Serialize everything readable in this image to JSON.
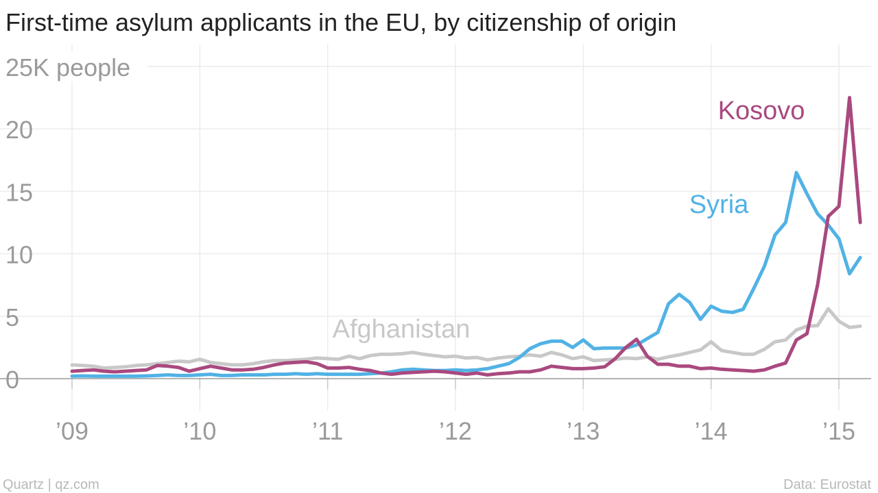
{
  "title": "First-time asylum applicants in the EU, by citizenship of origin",
  "footer": {
    "source_left": "Quartz | qz.com",
    "source_right": "Data: Eurostat"
  },
  "chart_data": {
    "type": "line",
    "title": "First-time asylum applicants in the EU, by citizenship of origin",
    "ylabel": "",
    "unit_label": "25K people",
    "ylim": [
      0,
      25
    ],
    "yticks": [
      0,
      5,
      10,
      15,
      20,
      25
    ],
    "ytick_labels": [
      "0",
      "5",
      "10",
      "15",
      "20",
      "25K people"
    ],
    "xlim": [
      2009,
      2015.25
    ],
    "xticks": [
      2009,
      2010,
      2011,
      2012,
      2013,
      2014,
      2015
    ],
    "xtick_labels": [
      "’09",
      "’10",
      "’11",
      "’12",
      "’13",
      "’14",
      "’15"
    ],
    "grid": true,
    "legend": "inline labels",
    "series": [
      {
        "name": "Kosovo",
        "color": "#a9497f",
        "points": [
          [
            2009.0,
            0.6
          ],
          [
            2009.083,
            0.65
          ],
          [
            2009.167,
            0.7
          ],
          [
            2009.25,
            0.6
          ],
          [
            2009.333,
            0.55
          ],
          [
            2009.417,
            0.6
          ],
          [
            2009.5,
            0.65
          ],
          [
            2009.583,
            0.7
          ],
          [
            2009.667,
            1.05
          ],
          [
            2009.75,
            1.0
          ],
          [
            2009.833,
            0.9
          ],
          [
            2009.917,
            0.6
          ],
          [
            2010.0,
            0.8
          ],
          [
            2010.083,
            1.0
          ],
          [
            2010.167,
            0.85
          ],
          [
            2010.25,
            0.7
          ],
          [
            2010.333,
            0.7
          ],
          [
            2010.417,
            0.75
          ],
          [
            2010.5,
            0.9
          ],
          [
            2010.583,
            1.1
          ],
          [
            2010.667,
            1.25
          ],
          [
            2010.75,
            1.3
          ],
          [
            2010.833,
            1.35
          ],
          [
            2010.917,
            1.2
          ],
          [
            2011.0,
            0.85
          ],
          [
            2011.083,
            0.85
          ],
          [
            2011.167,
            0.9
          ],
          [
            2011.25,
            0.75
          ],
          [
            2011.333,
            0.65
          ],
          [
            2011.417,
            0.45
          ],
          [
            2011.5,
            0.35
          ],
          [
            2011.583,
            0.45
          ],
          [
            2011.667,
            0.5
          ],
          [
            2011.75,
            0.55
          ],
          [
            2011.833,
            0.6
          ],
          [
            2011.917,
            0.55
          ],
          [
            2012.0,
            0.45
          ],
          [
            2012.083,
            0.35
          ],
          [
            2012.167,
            0.45
          ],
          [
            2012.25,
            0.3
          ],
          [
            2012.333,
            0.4
          ],
          [
            2012.417,
            0.45
          ],
          [
            2012.5,
            0.55
          ],
          [
            2012.583,
            0.55
          ],
          [
            2012.667,
            0.7
          ],
          [
            2012.75,
            1.0
          ],
          [
            2012.833,
            0.9
          ],
          [
            2012.917,
            0.8
          ],
          [
            2013.0,
            0.8
          ],
          [
            2013.083,
            0.85
          ],
          [
            2013.167,
            0.95
          ],
          [
            2013.25,
            1.6
          ],
          [
            2013.333,
            2.5
          ],
          [
            2013.417,
            3.15
          ],
          [
            2013.5,
            1.8
          ],
          [
            2013.583,
            1.15
          ],
          [
            2013.667,
            1.15
          ],
          [
            2013.75,
            1.0
          ],
          [
            2013.833,
            1.0
          ],
          [
            2013.917,
            0.8
          ],
          [
            2014.0,
            0.85
          ],
          [
            2014.083,
            0.75
          ],
          [
            2014.167,
            0.7
          ],
          [
            2014.25,
            0.65
          ],
          [
            2014.333,
            0.6
          ],
          [
            2014.417,
            0.7
          ],
          [
            2014.5,
            1.0
          ],
          [
            2014.583,
            1.25
          ],
          [
            2014.667,
            3.1
          ],
          [
            2014.75,
            3.6
          ],
          [
            2014.833,
            7.5
          ],
          [
            2014.917,
            13.0
          ],
          [
            2015.0,
            13.8
          ],
          [
            2015.083,
            22.5
          ],
          [
            2015.167,
            12.5
          ]
        ]
      },
      {
        "name": "Syria",
        "color": "#51b2e5",
        "points": [
          [
            2009.0,
            0.2
          ],
          [
            2009.083,
            0.22
          ],
          [
            2009.167,
            0.2
          ],
          [
            2009.25,
            0.2
          ],
          [
            2009.333,
            0.2
          ],
          [
            2009.417,
            0.2
          ],
          [
            2009.5,
            0.2
          ],
          [
            2009.583,
            0.22
          ],
          [
            2009.667,
            0.25
          ],
          [
            2009.75,
            0.3
          ],
          [
            2009.833,
            0.25
          ],
          [
            2009.917,
            0.25
          ],
          [
            2010.0,
            0.3
          ],
          [
            2010.083,
            0.35
          ],
          [
            2010.167,
            0.25
          ],
          [
            2010.25,
            0.25
          ],
          [
            2010.333,
            0.3
          ],
          [
            2010.417,
            0.3
          ],
          [
            2010.5,
            0.3
          ],
          [
            2010.583,
            0.35
          ],
          [
            2010.667,
            0.35
          ],
          [
            2010.75,
            0.4
          ],
          [
            2010.833,
            0.35
          ],
          [
            2010.917,
            0.4
          ],
          [
            2011.0,
            0.35
          ],
          [
            2011.083,
            0.35
          ],
          [
            2011.167,
            0.35
          ],
          [
            2011.25,
            0.35
          ],
          [
            2011.333,
            0.4
          ],
          [
            2011.417,
            0.45
          ],
          [
            2011.5,
            0.55
          ],
          [
            2011.583,
            0.7
          ],
          [
            2011.667,
            0.75
          ],
          [
            2011.75,
            0.7
          ],
          [
            2011.833,
            0.65
          ],
          [
            2011.917,
            0.65
          ],
          [
            2012.0,
            0.7
          ],
          [
            2012.083,
            0.65
          ],
          [
            2012.167,
            0.7
          ],
          [
            2012.25,
            0.8
          ],
          [
            2012.333,
            1.0
          ],
          [
            2012.417,
            1.2
          ],
          [
            2012.5,
            1.7
          ],
          [
            2012.583,
            2.4
          ],
          [
            2012.667,
            2.8
          ],
          [
            2012.75,
            3.0
          ],
          [
            2012.833,
            3.0
          ],
          [
            2012.917,
            2.5
          ],
          [
            2013.0,
            3.1
          ],
          [
            2013.083,
            2.4
          ],
          [
            2013.167,
            2.45
          ],
          [
            2013.25,
            2.45
          ],
          [
            2013.333,
            2.45
          ],
          [
            2013.417,
            2.7
          ],
          [
            2013.5,
            3.2
          ],
          [
            2013.583,
            3.7
          ],
          [
            2013.667,
            6.0
          ],
          [
            2013.75,
            6.75
          ],
          [
            2013.833,
            6.1
          ],
          [
            2013.917,
            4.75
          ],
          [
            2014.0,
            5.8
          ],
          [
            2014.083,
            5.4
          ],
          [
            2014.167,
            5.3
          ],
          [
            2014.25,
            5.55
          ],
          [
            2014.333,
            7.2
          ],
          [
            2014.417,
            9.0
          ],
          [
            2014.5,
            11.5
          ],
          [
            2014.583,
            12.5
          ],
          [
            2014.667,
            16.5
          ],
          [
            2014.75,
            14.8
          ],
          [
            2014.833,
            13.2
          ],
          [
            2014.917,
            12.3
          ],
          [
            2015.0,
            11.2
          ],
          [
            2015.083,
            8.4
          ],
          [
            2015.167,
            9.7
          ]
        ]
      },
      {
        "name": "Afghanistan",
        "color": "#c8c8c8",
        "points": [
          [
            2009.0,
            1.1
          ],
          [
            2009.083,
            1.05
          ],
          [
            2009.167,
            1.0
          ],
          [
            2009.25,
            0.85
          ],
          [
            2009.333,
            0.9
          ],
          [
            2009.417,
            0.95
          ],
          [
            2009.5,
            1.05
          ],
          [
            2009.583,
            1.1
          ],
          [
            2009.667,
            1.2
          ],
          [
            2009.75,
            1.3
          ],
          [
            2009.833,
            1.4
          ],
          [
            2009.917,
            1.35
          ],
          [
            2010.0,
            1.55
          ],
          [
            2010.083,
            1.3
          ],
          [
            2010.167,
            1.2
          ],
          [
            2010.25,
            1.1
          ],
          [
            2010.333,
            1.1
          ],
          [
            2010.417,
            1.2
          ],
          [
            2010.5,
            1.35
          ],
          [
            2010.583,
            1.45
          ],
          [
            2010.667,
            1.45
          ],
          [
            2010.75,
            1.5
          ],
          [
            2010.833,
            1.55
          ],
          [
            2010.917,
            1.65
          ],
          [
            2011.0,
            1.6
          ],
          [
            2011.083,
            1.55
          ],
          [
            2011.167,
            1.8
          ],
          [
            2011.25,
            1.6
          ],
          [
            2011.333,
            1.85
          ],
          [
            2011.417,
            1.95
          ],
          [
            2011.5,
            1.95
          ],
          [
            2011.583,
            2.0
          ],
          [
            2011.667,
            2.1
          ],
          [
            2011.75,
            1.95
          ],
          [
            2011.833,
            1.85
          ],
          [
            2011.917,
            1.75
          ],
          [
            2012.0,
            1.8
          ],
          [
            2012.083,
            1.65
          ],
          [
            2012.167,
            1.7
          ],
          [
            2012.25,
            1.5
          ],
          [
            2012.333,
            1.65
          ],
          [
            2012.417,
            1.75
          ],
          [
            2012.5,
            1.8
          ],
          [
            2012.583,
            1.9
          ],
          [
            2012.667,
            1.8
          ],
          [
            2012.75,
            2.1
          ],
          [
            2012.833,
            1.9
          ],
          [
            2012.917,
            1.6
          ],
          [
            2013.0,
            1.75
          ],
          [
            2013.083,
            1.45
          ],
          [
            2013.167,
            1.5
          ],
          [
            2013.25,
            1.55
          ],
          [
            2013.333,
            1.65
          ],
          [
            2013.417,
            1.6
          ],
          [
            2013.5,
            1.75
          ],
          [
            2013.583,
            1.55
          ],
          [
            2013.667,
            1.75
          ],
          [
            2013.75,
            1.9
          ],
          [
            2013.833,
            2.1
          ],
          [
            2013.917,
            2.3
          ],
          [
            2014.0,
            2.95
          ],
          [
            2014.083,
            2.25
          ],
          [
            2014.167,
            2.1
          ],
          [
            2014.25,
            1.95
          ],
          [
            2014.333,
            1.95
          ],
          [
            2014.417,
            2.35
          ],
          [
            2014.5,
            2.95
          ],
          [
            2014.583,
            3.1
          ],
          [
            2014.667,
            3.9
          ],
          [
            2014.75,
            4.2
          ],
          [
            2014.833,
            4.25
          ],
          [
            2014.917,
            5.6
          ],
          [
            2015.0,
            4.6
          ],
          [
            2015.083,
            4.1
          ],
          [
            2015.167,
            4.2
          ]
        ]
      }
    ]
  }
}
